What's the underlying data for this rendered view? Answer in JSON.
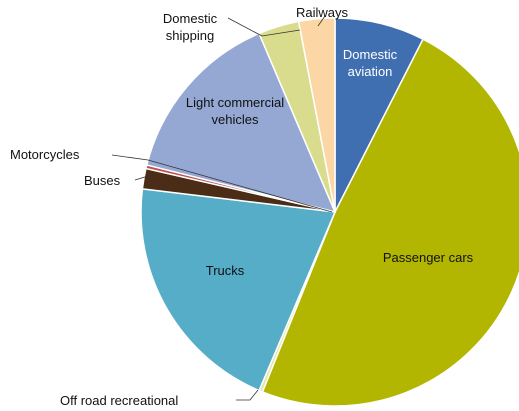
{
  "chart_data": {
    "type": "pie",
    "categories": [
      "Domestic aviation",
      "Passenger cars",
      "Off road recreational",
      "Trucks",
      "Buses",
      "Motorcycles",
      "Light commercial vehicles",
      "Domestic shipping",
      "Railways"
    ],
    "values": [
      7.5,
      48.6,
      0.3,
      20.5,
      1.7,
      0.3,
      14.7,
      3.4,
      3.0
    ],
    "colors": [
      "#3f6fb0",
      "#b3b600",
      "#e6e6a8",
      "#56adc7",
      "#4b2d17",
      "#c0504d",
      "#94a8d3",
      "#d9dc8c",
      "#fcd6a4"
    ]
  }
}
